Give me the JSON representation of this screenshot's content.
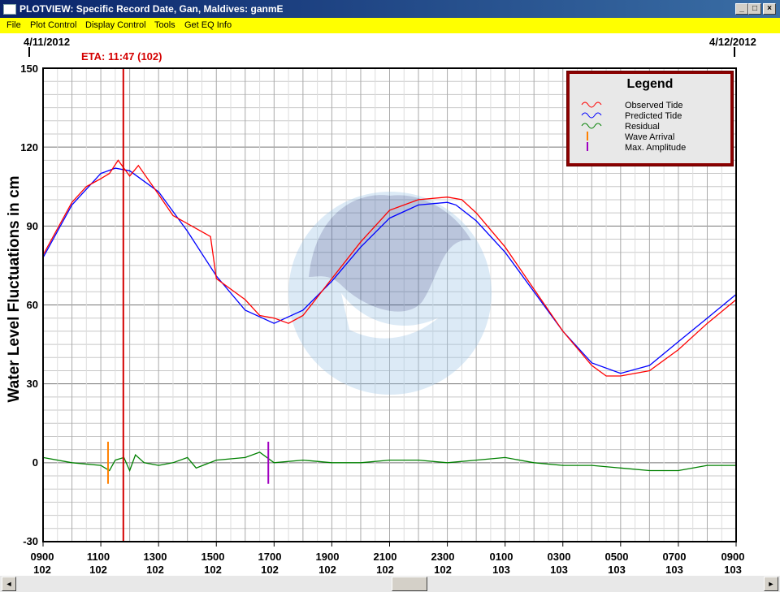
{
  "window": {
    "title": "PLOTVIEW: Specific Record Date, Gan, Maldives: ganmE",
    "minimize": "_",
    "maximize": "□",
    "close": "×"
  },
  "menu": {
    "items": [
      "File",
      "Plot Control",
      "Display Control",
      "Tools",
      "Get EQ Info"
    ]
  },
  "dates": {
    "start": "4/11/2012",
    "end": "4/12/2012"
  },
  "eta_label": "ETA: 11:47 (102)",
  "legend": {
    "title": "Legend",
    "entries": [
      {
        "label": "Observed Tide",
        "color": "#ff0000"
      },
      {
        "label": "Predicted Tide",
        "color": "#0000ff"
      },
      {
        "label": "Residual",
        "color": "#008000"
      },
      {
        "label": "Wave Arrival",
        "color": "#ff8000"
      },
      {
        "label": "Max. Amplitude",
        "color": "#a000c0"
      }
    ]
  },
  "chart_data": {
    "type": "line",
    "ylabel": "Water Level Fluctuations in cm",
    "ylim": [
      -30,
      150
    ],
    "yticks": [
      "150",
      "120",
      "90",
      "60",
      "30",
      "0",
      "-30"
    ],
    "xticks": [
      {
        "time": "0900",
        "day": "102"
      },
      {
        "time": "1100",
        "day": "102"
      },
      {
        "time": "1300",
        "day": "102"
      },
      {
        "time": "1500",
        "day": "102"
      },
      {
        "time": "1700",
        "day": "102"
      },
      {
        "time": "1900",
        "day": "102"
      },
      {
        "time": "2100",
        "day": "102"
      },
      {
        "time": "2300",
        "day": "102"
      },
      {
        "time": "0100",
        "day": "103"
      },
      {
        "time": "0300",
        "day": "103"
      },
      {
        "time": "0500",
        "day": "103"
      },
      {
        "time": "0700",
        "day": "103"
      },
      {
        "time": "0900",
        "day": "103"
      }
    ],
    "x_range_hours_after_0900_day102": [
      0,
      24
    ],
    "series": [
      {
        "name": "Predicted Tide",
        "color": "#0000ff",
        "x": [
          0,
          1,
          2,
          2.5,
          3,
          4,
          5,
          6,
          7,
          8,
          9,
          10,
          11,
          12,
          13,
          14,
          14.3,
          15,
          16,
          17,
          18,
          19,
          20,
          21,
          22,
          23,
          24
        ],
        "y": [
          78,
          98,
          110,
          112,
          111,
          103,
          88,
          71,
          58,
          53,
          58,
          69,
          82,
          93,
          98,
          99,
          98,
          92,
          80,
          65,
          50,
          38,
          34,
          37,
          46,
          55,
          64
        ]
      },
      {
        "name": "Observed Tide",
        "color": "#ff0000",
        "x": [
          0,
          1,
          1.5,
          2,
          2.3,
          2.6,
          3,
          3.3,
          4,
          4.5,
          5.8,
          6,
          7,
          7.5,
          8,
          8.5,
          9,
          10,
          11,
          12,
          13,
          14,
          14.5,
          15,
          16,
          17,
          18,
          19,
          19.5,
          20,
          21,
          22,
          23,
          24
        ],
        "y": [
          79,
          99,
          105,
          108,
          110,
          115,
          109,
          113,
          102,
          94,
          86,
          70,
          62,
          56,
          55,
          53,
          56,
          70,
          84,
          96,
          100,
          101,
          100,
          95,
          82,
          66,
          50,
          37,
          33,
          33,
          35,
          43,
          53,
          62
        ]
      },
      {
        "name": "Residual",
        "color": "#008000",
        "x": [
          0,
          1,
          2,
          2.3,
          2.5,
          2.8,
          3,
          3.2,
          3.5,
          4,
          4.5,
          5,
          5.3,
          6,
          7,
          7.5,
          8,
          9,
          10,
          11,
          12,
          13,
          14,
          15,
          16,
          17,
          18,
          19,
          20,
          21,
          22,
          23,
          23.5,
          24
        ],
        "y": [
          2,
          0,
          -1,
          -3,
          1,
          2,
          -3,
          3,
          0,
          -1,
          0,
          2,
          -2,
          1,
          2,
          4,
          0,
          1,
          0,
          0,
          1,
          1,
          0,
          1,
          2,
          0,
          -1,
          -1,
          -2,
          -3,
          -3,
          -1,
          -1,
          -1
        ]
      }
    ],
    "markers": [
      {
        "name": "Wave Arrival",
        "x": 2.25,
        "color": "#ff8000",
        "y_range": [
          -8,
          8
        ]
      },
      {
        "name": "Max. Amplitude",
        "x": 7.8,
        "color": "#a000c0",
        "y_range": [
          -8,
          8
        ]
      },
      {
        "name": "ETA",
        "x": 2.78,
        "color": "#d40000"
      }
    ]
  },
  "scrollbar": {
    "left": "◄",
    "right": "►"
  }
}
